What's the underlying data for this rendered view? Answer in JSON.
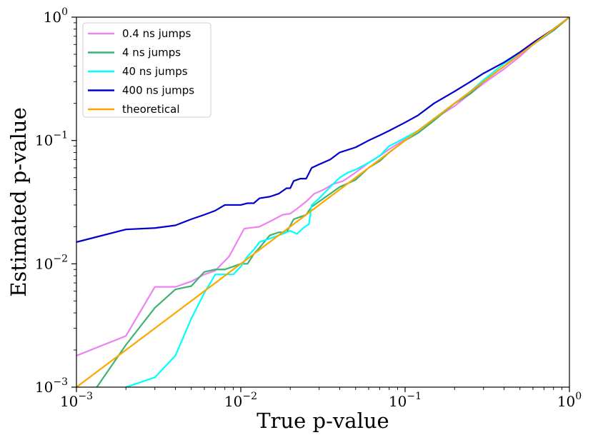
{
  "chart_data": {
    "type": "line",
    "title": "",
    "xlabel": "True p-value",
    "ylabel": "Estimated p-value",
    "xscale": "log",
    "yscale": "log",
    "xlim": [
      0.001,
      1
    ],
    "ylim": [
      0.001,
      1
    ],
    "grid": false,
    "legend_position": "top-left",
    "x_tick_labels": [
      {
        "value": 0.001,
        "base": "10",
        "exp": "−3"
      },
      {
        "value": 0.01,
        "base": "10",
        "exp": "−2"
      },
      {
        "value": 0.1,
        "base": "10",
        "exp": "−1"
      },
      {
        "value": 1,
        "base": "10",
        "exp": "0"
      }
    ],
    "y_tick_labels": [
      {
        "value": 0.001,
        "base": "10",
        "exp": "−3"
      },
      {
        "value": 0.01,
        "base": "10",
        "exp": "−2"
      },
      {
        "value": 0.1,
        "base": "10",
        "exp": "−1"
      },
      {
        "value": 1,
        "base": "10",
        "exp": "0"
      }
    ],
    "series": [
      {
        "name": "0.4 ns jumps",
        "color": "#ee82ee",
        "points": [
          [
            0.001,
            0.0018
          ],
          [
            0.002,
            0.0026
          ],
          [
            0.003,
            0.0065
          ],
          [
            0.004,
            0.0065
          ],
          [
            0.005,
            0.0072
          ],
          [
            0.006,
            0.0082
          ],
          [
            0.007,
            0.0088
          ],
          [
            0.0085,
            0.0115
          ],
          [
            0.0105,
            0.0193
          ],
          [
            0.013,
            0.02
          ],
          [
            0.016,
            0.023
          ],
          [
            0.018,
            0.025
          ],
          [
            0.02,
            0.0255
          ],
          [
            0.022,
            0.028
          ],
          [
            0.025,
            0.032
          ],
          [
            0.028,
            0.037
          ],
          [
            0.032,
            0.04
          ],
          [
            0.036,
            0.044
          ],
          [
            0.042,
            0.047
          ],
          [
            0.05,
            0.055
          ],
          [
            0.06,
            0.066
          ],
          [
            0.07,
            0.075
          ],
          [
            0.08,
            0.085
          ],
          [
            0.1,
            0.102
          ],
          [
            0.12,
            0.12
          ],
          [
            0.15,
            0.15
          ],
          [
            0.2,
            0.19
          ],
          [
            0.25,
            0.24
          ],
          [
            0.3,
            0.29
          ],
          [
            0.4,
            0.38
          ],
          [
            0.5,
            0.48
          ],
          [
            0.6,
            0.6
          ],
          [
            0.8,
            0.78
          ],
          [
            1,
            1
          ]
        ]
      },
      {
        "name": "4 ns jumps",
        "color": "#3cb371",
        "points": [
          [
            0.00133,
            0.001
          ],
          [
            0.002,
            0.0022
          ],
          [
            0.003,
            0.0044
          ],
          [
            0.004,
            0.0062
          ],
          [
            0.005,
            0.0066
          ],
          [
            0.006,
            0.0086
          ],
          [
            0.007,
            0.009
          ],
          [
            0.008,
            0.009
          ],
          [
            0.009,
            0.0095
          ],
          [
            0.01,
            0.01
          ],
          [
            0.011,
            0.01
          ],
          [
            0.012,
            0.012
          ],
          [
            0.013,
            0.0135
          ],
          [
            0.015,
            0.017
          ],
          [
            0.017,
            0.018
          ],
          [
            0.019,
            0.018
          ],
          [
            0.021,
            0.023
          ],
          [
            0.023,
            0.024
          ],
          [
            0.025,
            0.025
          ],
          [
            0.027,
            0.029
          ],
          [
            0.03,
            0.032
          ],
          [
            0.035,
            0.037
          ],
          [
            0.04,
            0.042
          ],
          [
            0.045,
            0.045
          ],
          [
            0.05,
            0.048
          ],
          [
            0.06,
            0.06
          ],
          [
            0.07,
            0.068
          ],
          [
            0.08,
            0.08
          ],
          [
            0.09,
            0.09
          ],
          [
            0.1,
            0.1
          ],
          [
            0.12,
            0.115
          ],
          [
            0.15,
            0.145
          ],
          [
            0.2,
            0.2
          ],
          [
            0.25,
            0.24
          ],
          [
            0.3,
            0.3
          ],
          [
            0.4,
            0.4
          ],
          [
            0.5,
            0.5
          ],
          [
            0.6,
            0.6
          ],
          [
            0.8,
            0.78
          ],
          [
            1,
            1
          ]
        ]
      },
      {
        "name": "40 ns jumps",
        "color": "#00ffff",
        "points": [
          [
            0.002,
            0.001
          ],
          [
            0.003,
            0.0012
          ],
          [
            0.004,
            0.0018
          ],
          [
            0.005,
            0.0036
          ],
          [
            0.006,
            0.0058
          ],
          [
            0.007,
            0.0082
          ],
          [
            0.009,
            0.0082
          ],
          [
            0.01,
            0.0095
          ],
          [
            0.011,
            0.0115
          ],
          [
            0.012,
            0.013
          ],
          [
            0.013,
            0.015
          ],
          [
            0.015,
            0.016
          ],
          [
            0.017,
            0.017
          ],
          [
            0.02,
            0.0185
          ],
          [
            0.022,
            0.0175
          ],
          [
            0.024,
            0.0195
          ],
          [
            0.026,
            0.021
          ],
          [
            0.027,
            0.03
          ],
          [
            0.03,
            0.034
          ],
          [
            0.035,
            0.042
          ],
          [
            0.04,
            0.05
          ],
          [
            0.045,
            0.055
          ],
          [
            0.05,
            0.058
          ],
          [
            0.06,
            0.066
          ],
          [
            0.07,
            0.075
          ],
          [
            0.08,
            0.09
          ],
          [
            0.1,
            0.105
          ],
          [
            0.12,
            0.12
          ],
          [
            0.15,
            0.15
          ],
          [
            0.2,
            0.2
          ],
          [
            0.25,
            0.25
          ],
          [
            0.3,
            0.31
          ],
          [
            0.4,
            0.42
          ],
          [
            0.5,
            0.5
          ],
          [
            0.6,
            0.6
          ],
          [
            0.8,
            0.8
          ],
          [
            1,
            1
          ]
        ]
      },
      {
        "name": "400 ns jumps",
        "color": "#0000cd",
        "points": [
          [
            0.001,
            0.015
          ],
          [
            0.002,
            0.019
          ],
          [
            0.003,
            0.0195
          ],
          [
            0.004,
            0.0205
          ],
          [
            0.005,
            0.023
          ],
          [
            0.006,
            0.025
          ],
          [
            0.007,
            0.027
          ],
          [
            0.008,
            0.03
          ],
          [
            0.009,
            0.03
          ],
          [
            0.01,
            0.03
          ],
          [
            0.011,
            0.031
          ],
          [
            0.012,
            0.031
          ],
          [
            0.013,
            0.034
          ],
          [
            0.015,
            0.035
          ],
          [
            0.017,
            0.037
          ],
          [
            0.019,
            0.041
          ],
          [
            0.02,
            0.041
          ],
          [
            0.021,
            0.047
          ],
          [
            0.023,
            0.049
          ],
          [
            0.025,
            0.049
          ],
          [
            0.027,
            0.06
          ],
          [
            0.03,
            0.064
          ],
          [
            0.035,
            0.07
          ],
          [
            0.04,
            0.08
          ],
          [
            0.05,
            0.088
          ],
          [
            0.06,
            0.1
          ],
          [
            0.07,
            0.11
          ],
          [
            0.08,
            0.12
          ],
          [
            0.1,
            0.14
          ],
          [
            0.12,
            0.16
          ],
          [
            0.15,
            0.2
          ],
          [
            0.2,
            0.25
          ],
          [
            0.25,
            0.3
          ],
          [
            0.3,
            0.35
          ],
          [
            0.4,
            0.43
          ],
          [
            0.5,
            0.52
          ],
          [
            0.6,
            0.62
          ],
          [
            0.8,
            0.8
          ],
          [
            1,
            1
          ]
        ]
      },
      {
        "name": "theoretical",
        "color": "#ffa500",
        "points": [
          [
            0.001,
            0.001
          ],
          [
            1,
            1
          ]
        ]
      }
    ]
  }
}
